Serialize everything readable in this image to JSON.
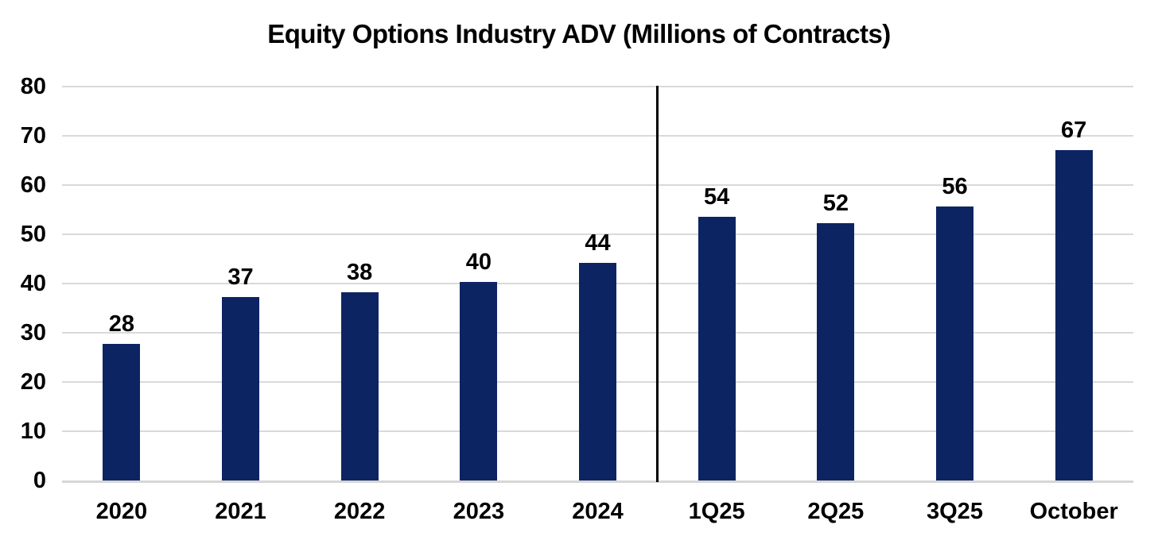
{
  "title": "Equity Options Industry ADV (Millions of Contracts)",
  "colors": {
    "bar": "#0d2463",
    "gridline": "#d9d9d9",
    "axis_line": "#d6d6d6",
    "divider": "#000000",
    "text": "#000000",
    "background": "#ffffff"
  },
  "chart_data": {
    "type": "bar",
    "title": "Equity Options Industry ADV (Millions of Contracts)",
    "categories": [
      "2020",
      "2021",
      "2022",
      "2023",
      "2024",
      "1Q25",
      "2Q25",
      "3Q25",
      "October"
    ],
    "values": [
      28,
      37,
      38,
      40,
      44,
      54,
      52,
      56,
      67
    ],
    "values_precise": [
      27.7,
      37.2,
      38.2,
      40.3,
      44.2,
      53.5,
      52.2,
      55.6,
      67.1
    ],
    "data_labels": [
      "28",
      "37",
      "38",
      "40",
      "44",
      "54",
      "52",
      "56",
      "67"
    ],
    "xlabel": "",
    "ylabel": "",
    "ylim": [
      0,
      80
    ],
    "yticks": [
      0,
      10,
      20,
      30,
      40,
      50,
      60,
      70,
      80
    ],
    "grid": "horizontal",
    "legend": "none",
    "divider_after_category": "2024"
  }
}
